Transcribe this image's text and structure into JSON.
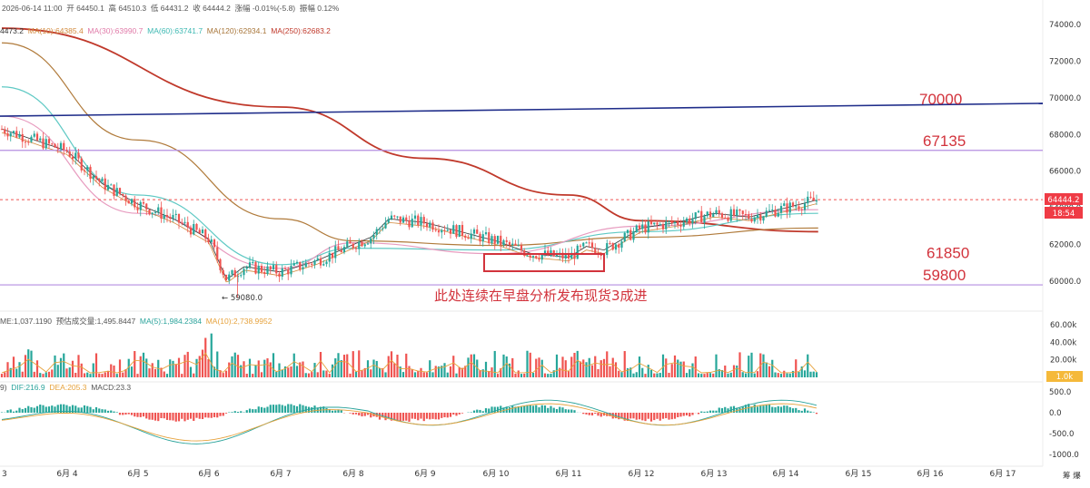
{
  "header": {
    "datetime": "2026-06-14 11:00",
    "open": "开 64450.1",
    "high": "高 64510.3",
    "low": "低 64431.2",
    "close": "收 64444.2",
    "change": "涨幅 -0.01%(-5.8)",
    "amplitude": "振幅 0.12%"
  },
  "ma_legend": {
    "ma5": "4473.2",
    "ma10": "MA(10):64385.4",
    "ma30": "MA(30):63990.7",
    "ma60": "MA(60):63741.7",
    "ma120": "MA(120):62934.1",
    "ma250": "MA(250):62683.2"
  },
  "vol_legend": {
    "vol": "ME:1,037.1190",
    "forecast": "预估成交量:1,495.8447",
    "ma5": "MA(5):1,984.2384",
    "ma10": "MA(10):2,738.9952"
  },
  "macd_legend": {
    "prefix": "9)",
    "dif": "DIF:216.9",
    "dea": "DEA:205.3",
    "macd": "MACD:23.3"
  },
  "price_badge": "64444.2",
  "countdown_badge": "18:54",
  "vol_badge": "1.0k",
  "low_marker": "← 59080.0",
  "note": "此处连续在早盘分析发布现货3成进",
  "footer_right": "筹 爆",
  "colors": {
    "up": "#26a69a",
    "down": "#ef5350",
    "ma250": "#c0392b",
    "ma120": "#b07a3a",
    "ma60": "#5fc9c4",
    "ma30": "#e79bbf",
    "ma10": "#d28a3c",
    "ma5": "#333333",
    "level_blue": "#1f2d8a",
    "level_purple": "#b58ee0",
    "annotation": "#d2333c"
  },
  "chart_data": [
    {
      "type": "candlestick",
      "title": "",
      "timeframe": "hourly",
      "x_ticks": [
        "3",
        "6月 4",
        "6月 5",
        "6月 6",
        "6月 7",
        "6月 8",
        "6月 9",
        "6月 10",
        "6月 11",
        "6月 12",
        "6月 13",
        "6月 14",
        "6月 15",
        "6月 16",
        "6月 17"
      ],
      "y_ticks": [
        "74000.0",
        "72000.0",
        "70000.0",
        "68000.0",
        "66000.0",
        "64000.0",
        "62000.0",
        "60000.0"
      ],
      "ylim": [
        59300,
        74800
      ],
      "close_path": [
        [
          "6月 3",
          68300
        ],
        [
          "6月 4",
          67100
        ],
        [
          "6月 4 12h",
          65300
        ],
        [
          "6月 5",
          64200
        ],
        [
          "6月 5 12h",
          63400
        ],
        [
          "6月 6",
          62300
        ],
        [
          "6月 6 06h",
          60100
        ],
        [
          "6月 6 12h",
          60800
        ],
        [
          "6月 7",
          60500
        ],
        [
          "6月 7 12h",
          61100
        ],
        [
          "6月 8",
          62000
        ],
        [
          "6月 8 06h",
          62400
        ],
        [
          "6月 8 12h",
          63400
        ],
        [
          "6月 9",
          63200
        ],
        [
          "6月 9 12h",
          62700
        ],
        [
          "6月 10",
          62200
        ],
        [
          "6月 10 12h",
          61500
        ],
        [
          "6月 11",
          61300
        ],
        [
          "6月 11 06h",
          61900
        ],
        [
          "6月 11 12h",
          61700
        ],
        [
          "6月 12",
          62900
        ],
        [
          "6月 12 12h",
          63200
        ],
        [
          "6月 13",
          63700
        ],
        [
          "6月 13 12h",
          63500
        ],
        [
          "6月 14",
          64000
        ],
        [
          "6月 14 11h",
          64444.2
        ]
      ],
      "last_price": 64444.2,
      "min_marked": 59080.0,
      "levels": [
        {
          "label": "70000",
          "value": 69600,
          "color": "blue",
          "sloped": true
        },
        {
          "label": "67135",
          "value": 67135,
          "color": "purple"
        },
        {
          "label": "61850",
          "value": 61850,
          "color": "none"
        },
        {
          "label": "59800",
          "value": 59800,
          "color": "purple"
        }
      ],
      "moving_averages": {
        "ma250": [
          [
            "6月 3",
            73800
          ],
          [
            "6月 7",
            69500
          ],
          [
            "6月 9",
            66700
          ],
          [
            "6月 11",
            64700
          ],
          [
            "6月 12",
            63300
          ],
          [
            "6月 14 11h",
            62700
          ]
        ],
        "ma120": [
          [
            "6月 3",
            73000
          ],
          [
            "6月 5",
            67700
          ],
          [
            "6月 7",
            63400
          ],
          [
            "6月 8",
            62200
          ],
          [
            "6月 10",
            61950
          ],
          [
            "6月 12",
            62400
          ],
          [
            "6月 14 11h",
            62900
          ]
        ],
        "ma60": [
          [
            "6月 3",
            70600
          ],
          [
            "6月 5",
            64700
          ],
          [
            "6月 7",
            60900
          ],
          [
            "6月 8",
            61800
          ],
          [
            "6月 10",
            61700
          ],
          [
            "6月 12",
            62700
          ],
          [
            "6月 14 11h",
            63700
          ]
        ],
        "ma30": [
          [
            "6月 3",
            69000
          ],
          [
            "6月 5",
            63700
          ],
          [
            "6月 7",
            60700
          ],
          [
            "6月 8",
            62100
          ],
          [
            "6月 10",
            61500
          ],
          [
            "6月 12",
            63000
          ],
          [
            "6月 14 11h",
            63900
          ]
        ]
      }
    },
    {
      "type": "bar",
      "title": "volume",
      "y_ticks": [
        "60.00k",
        "40.00k",
        "20.00k"
      ],
      "ylim": [
        0,
        70000
      ]
    },
    {
      "type": "bar",
      "title": "MACD",
      "y_ticks": [
        "500.0",
        "0.0",
        "-500.0",
        "-1000.0"
      ],
      "ylim": [
        -1250,
        650
      ]
    }
  ]
}
